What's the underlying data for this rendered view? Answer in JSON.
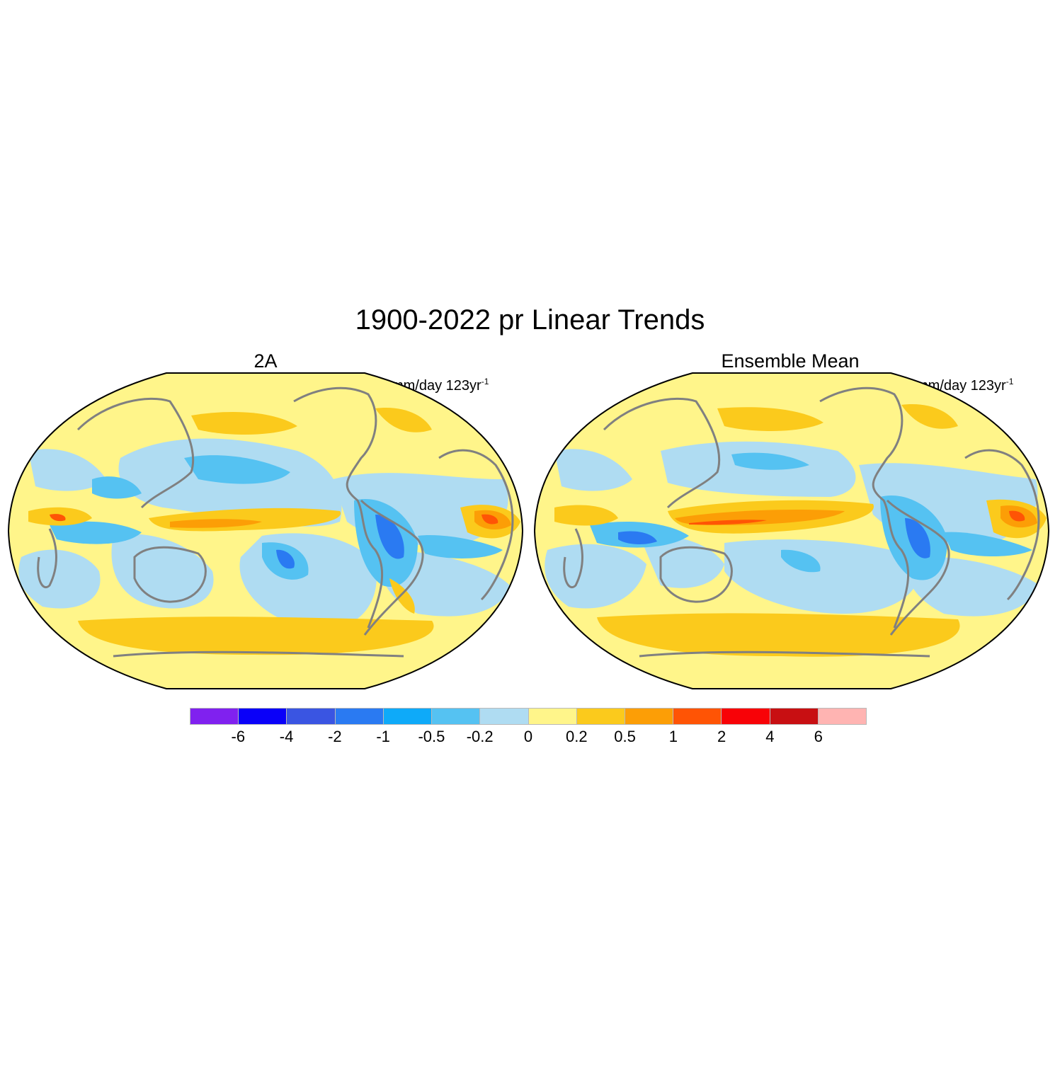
{
  "title": "1900-2022 pr Linear Trends",
  "panels": [
    {
      "title": "2A",
      "units": "mm/day 123yr",
      "units_exponent": "-1"
    },
    {
      "title": "Ensemble Mean",
      "units": "mm/day 123yr",
      "units_exponent": "-1"
    }
  ],
  "colorbar": {
    "colors": [
      "#8021ef",
      "#0a00f9",
      "#3a55e2",
      "#2a7af2",
      "#0eaaf9",
      "#55c2f2",
      "#afdcf2",
      "#fff58a",
      "#fbca1c",
      "#fc9e06",
      "#ff5405",
      "#f80207",
      "#c80f12",
      "#ffb4b2"
    ],
    "labels": [
      "-6",
      "-4",
      "-2",
      "-1",
      "-0.5",
      "-0.2",
      "0",
      "0.2",
      "0.5",
      "1",
      "2",
      "4",
      "6"
    ]
  },
  "map_style": {
    "coastline_color": "#808080",
    "border_color": "#000000"
  }
}
